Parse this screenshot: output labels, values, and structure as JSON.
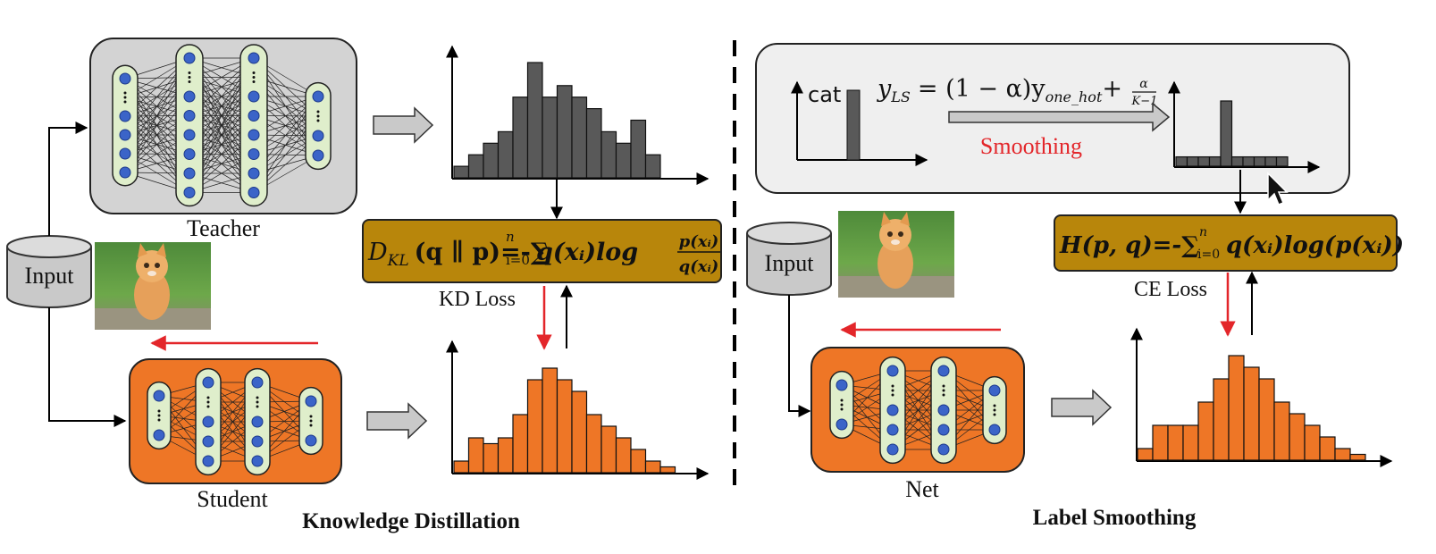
{
  "left": {
    "teacher_label": "Teacher",
    "student_label": "Student",
    "input_label": "Input",
    "kd_loss_formula": "D_KL (q ‖ p)=-∑ q(xᵢ) log p(xᵢ)/q(xᵢ)",
    "kd_loss_lhs": "D",
    "kd_loss_lhs_sub": "KL",
    "kd_loss_args": "(q ∥ p)=-∑",
    "kd_loss_sum_sub": "i=0",
    "kd_loss_sum_sup": "n",
    "kd_loss_body": "q(xᵢ)log",
    "kd_loss_frac_num": "p(xᵢ)",
    "kd_loss_frac_den": "q(xᵢ)",
    "kd_loss_label": "KD Loss",
    "caption": "Knowledge Distillation",
    "teacher_hist": [
      1,
      2,
      3,
      4,
      7,
      10,
      7,
      8,
      7,
      6,
      4,
      3,
      5,
      2
    ],
    "student_hist": [
      1,
      3,
      2.5,
      3,
      5,
      8,
      9,
      8,
      7,
      5,
      4,
      3,
      2,
      1,
      0.5
    ],
    "colors": {
      "teacher_box": "#d3d3d3",
      "student_box": "#ee7626",
      "hist_gray": "#595959",
      "hist_orange": "#ee7626"
    }
  },
  "right": {
    "net_label": "Net",
    "input_label": "Input",
    "cat_label": "cat",
    "ls_eq_lhs": "y",
    "ls_eq_lhs_sub": "LS",
    "ls_eq_rhs": "= (1 − α)y",
    "ls_eq_rhs_sub": "one_hot",
    "ls_eq_plus": "+",
    "ls_frac_num": "α",
    "ls_frac_den": "K−1",
    "smoothing_label": "Smoothing",
    "ce_loss_lhs": "H(p, q)=-∑",
    "ce_loss_sum_sub": "i=0",
    "ce_loss_sum_sup": "n",
    "ce_loss_body": "q(xᵢ)log(p(xᵢ))",
    "ce_loss_label": "CE Loss",
    "caption": "Label Smoothing",
    "smoothed_hist": [
      1,
      1,
      1,
      1,
      7,
      1,
      1,
      1,
      1,
      1
    ],
    "net_hist": [
      1,
      3,
      3,
      3,
      5,
      7,
      9,
      8,
      7,
      5,
      4,
      3,
      2,
      1,
      0.5
    ],
    "colors": {
      "smoothing_box": "#efefef",
      "smoothing_text": "#e3262a",
      "loss_box": "#b8860b"
    }
  }
}
